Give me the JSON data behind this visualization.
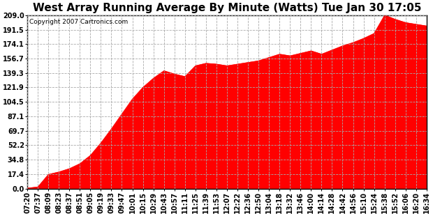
{
  "title": "West Array Running Average By Minute (Watts) Tue Jan 30 17:05",
  "copyright_text": "Copyright 2007 Cartronics.com",
  "fill_color": "#FF0000",
  "background_color": "#FFFFFF",
  "plot_bg_color": "#FFFFFF",
  "grid_color": "#AAAAAA",
  "yticks": [
    0.0,
    17.4,
    34.8,
    52.2,
    69.7,
    87.1,
    104.5,
    121.9,
    139.3,
    156.7,
    174.1,
    191.5,
    209.0
  ],
  "ytick_labels": [
    "0.0",
    "17.4",
    "34.8",
    "52.2",
    "69.7",
    "87.1",
    "104.5",
    "121.9",
    "139.3",
    "156.7",
    "174.1",
    "191.5",
    "209.0"
  ],
  "xtick_labels": [
    "07:20",
    "07:37",
    "08:09",
    "08:23",
    "08:37",
    "08:51",
    "09:05",
    "09:19",
    "09:33",
    "09:47",
    "10:01",
    "10:15",
    "10:29",
    "10:43",
    "10:57",
    "11:11",
    "11:25",
    "11:39",
    "11:53",
    "12:07",
    "12:22",
    "12:36",
    "12:50",
    "13:04",
    "13:18",
    "13:32",
    "13:46",
    "14:00",
    "14:14",
    "14:28",
    "14:42",
    "14:56",
    "15:10",
    "15:24",
    "15:38",
    "15:52",
    "16:06",
    "16:20",
    "16:34"
  ],
  "x_data": [
    0,
    1,
    2,
    3,
    4,
    5,
    6,
    7,
    8,
    9,
    10,
    11,
    12,
    13,
    14,
    15,
    16,
    17,
    18,
    19,
    20,
    21,
    22,
    23,
    24,
    25,
    26,
    27,
    28,
    29,
    30,
    31,
    32,
    33,
    34,
    35,
    36,
    37,
    38
  ],
  "y_data": [
    0.5,
    2.0,
    17.0,
    20.0,
    24.0,
    30.0,
    40.0,
    55.0,
    72.0,
    90.0,
    108.0,
    122.0,
    133.0,
    142.0,
    138.0,
    135.0,
    148.0,
    151.0,
    150.0,
    148.0,
    150.0,
    152.0,
    154.0,
    158.0,
    162.0,
    160.0,
    163.0,
    166.0,
    162.0,
    167.0,
    172.0,
    176.0,
    181.0,
    187.0,
    209.0,
    204.0,
    200.0,
    198.0,
    196.0
  ],
  "ylim": [
    0.0,
    209.0
  ],
  "xlim": [
    0,
    38
  ],
  "title_fontsize": 11,
  "axis_fontsize": 7,
  "copyright_fontsize": 6.5
}
